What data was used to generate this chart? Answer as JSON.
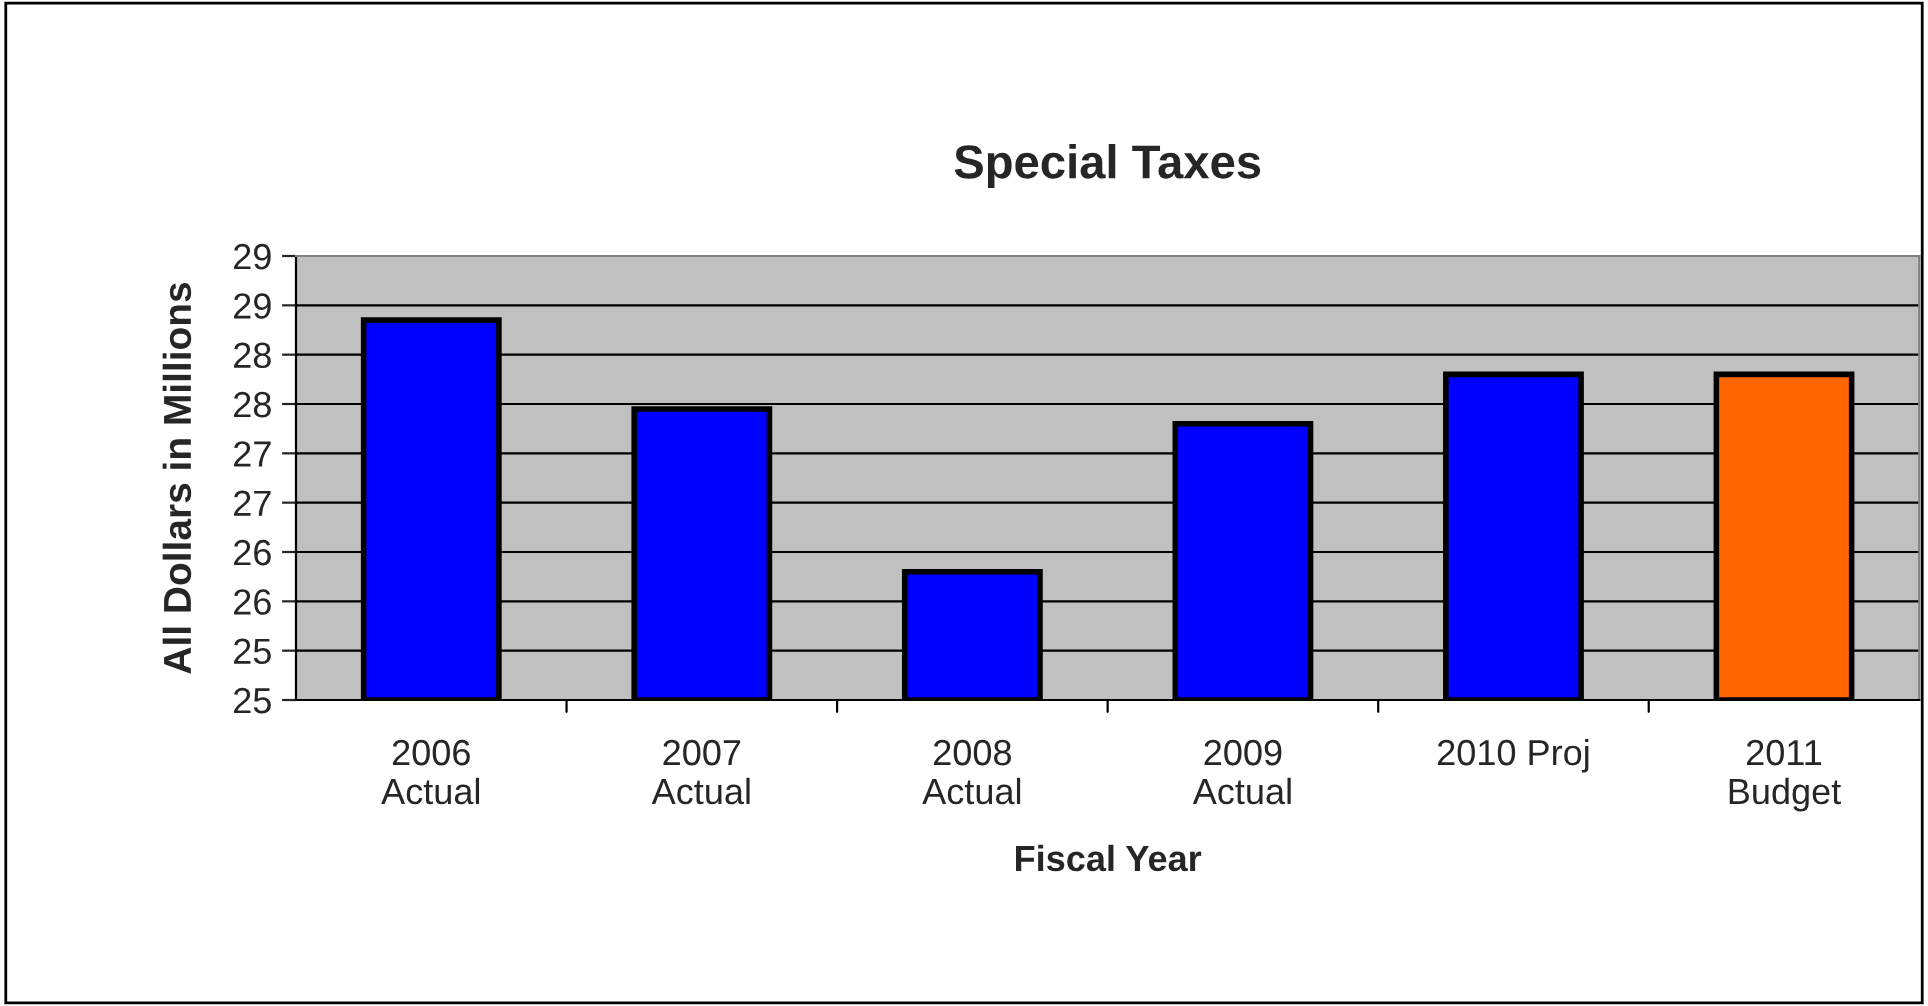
{
  "chart_data": {
    "type": "bar",
    "title": "Special Taxes",
    "xlabel": "Fiscal Year",
    "ylabel": "All Dollars in Millions",
    "categories": [
      "2006\nActual",
      "2007\nActual",
      "2008\nActual",
      "2009\nActual",
      "2010 Proj",
      "2011\nBudget"
    ],
    "values": [
      28.35,
      27.45,
      25.8,
      27.3,
      27.8,
      27.8
    ],
    "colors": [
      "#0000ff",
      "#0000ff",
      "#0000ff",
      "#0000ff",
      "#0000ff",
      "#ff6600"
    ],
    "ylim": [
      24.5,
      29.0
    ],
    "yticks": [
      {
        "value": 24.5,
        "label": "25"
      },
      {
        "value": 25.0,
        "label": "25"
      },
      {
        "value": 25.5,
        "label": "26"
      },
      {
        "value": 26.0,
        "label": "26"
      },
      {
        "value": 26.5,
        "label": "27"
      },
      {
        "value": 27.0,
        "label": "27"
      },
      {
        "value": 27.5,
        "label": "28"
      },
      {
        "value": 28.0,
        "label": "28"
      },
      {
        "value": 28.5,
        "label": "29"
      },
      {
        "value": 29.0,
        "label": "29"
      }
    ],
    "grid": "y"
  }
}
